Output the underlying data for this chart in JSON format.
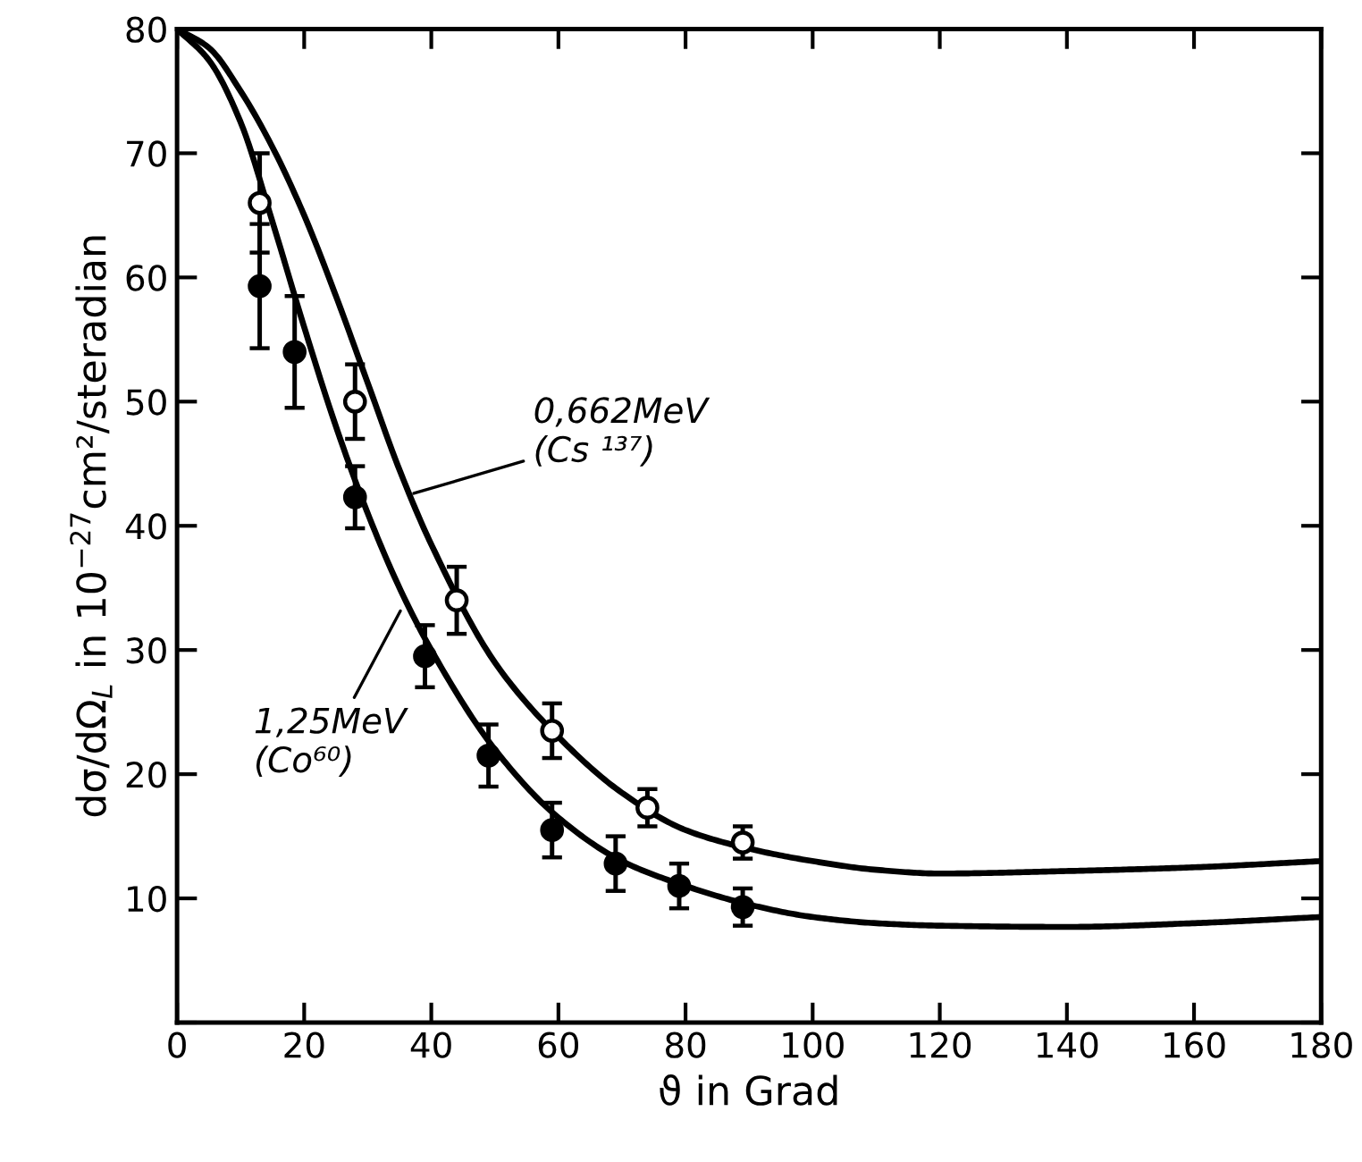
{
  "chart_data": {
    "type": "scatter",
    "xlabel": "ϑ in Grad",
    "ylabel": "dσ/dΩ$_{L}$ in 10$^{−27}$cm²/steradian",
    "xlim": [
      0,
      180
    ],
    "ylim": [
      0,
      80
    ],
    "xticks": [
      0,
      20,
      40,
      60,
      80,
      100,
      120,
      140,
      160,
      180
    ],
    "yticks": [
      {
        "value": 0,
        "label": null
      },
      10,
      20,
      30,
      40,
      50,
      60,
      70,
      80
    ],
    "grid": false,
    "legend": false,
    "annotations": [
      {
        "text": "0,662MeV\n(Cs ¹³⁷)",
        "x": 36.5,
        "y": 42.5
      },
      {
        "text": "1,25MeV\n(Co⁶⁰)",
        "x": 35.5,
        "y": 33.5
      }
    ],
    "series": [
      {
        "type": "line",
        "color": "#000000",
        "line_style": "solid",
        "x": [
          0,
          5,
          10,
          15,
          20,
          25,
          30,
          35,
          40,
          50,
          60,
          70,
          80,
          90,
          100,
          110,
          120,
          140,
          160,
          180
        ],
        "values": [
          80,
          78.5,
          75,
          70.5,
          65,
          58.5,
          51.5,
          44.5,
          38.5,
          29,
          23,
          18.5,
          15.5,
          14,
          13,
          12.3,
          12,
          12.2,
          12.5,
          13
        ]
      },
      {
        "type": "line",
        "color": "#000000",
        "line_style": "solid",
        "x": [
          0,
          5,
          10,
          15,
          20,
          25,
          30,
          35,
          40,
          50,
          60,
          70,
          80,
          90,
          100,
          110,
          120,
          140,
          160,
          180
        ],
        "values": [
          80,
          77.5,
          72.5,
          64.5,
          56,
          48,
          41,
          35,
          30,
          22,
          16.5,
          13,
          11,
          9.5,
          8.5,
          8,
          7.8,
          7.7,
          8,
          8.5
        ]
      },
      {
        "marker": "circle",
        "color": "#ffffff",
        "x": [
          13,
          28,
          44,
          59,
          74,
          89
        ],
        "values": [
          66,
          50,
          34,
          23.5,
          17.3,
          14.5
        ],
        "errors": [
          4,
          3,
          2.7,
          2.2,
          1.5,
          1.3
        ]
      },
      {
        "marker": "circle",
        "color": "#000000",
        "x": [
          13,
          18.5,
          28,
          39,
          49,
          59,
          69,
          79,
          89
        ],
        "values": [
          59.3,
          54,
          42.3,
          29.5,
          21.5,
          15.5,
          12.8,
          11,
          9.3
        ],
        "errors": [
          5,
          4.5,
          2.5,
          2.5,
          2.5,
          2.2,
          2.2,
          1.8,
          1.5
        ]
      }
    ]
  }
}
